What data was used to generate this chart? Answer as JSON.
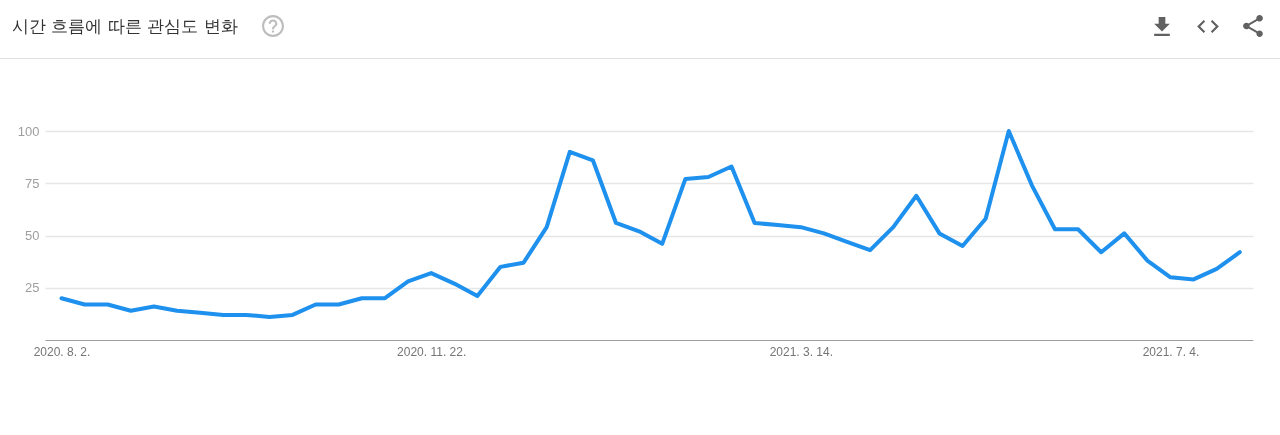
{
  "chart_data": {
    "type": "line",
    "title": "시간 흐름에 따른 관심도 변화",
    "x": [
      "2020-08-02",
      "2020-08-09",
      "2020-08-16",
      "2020-08-23",
      "2020-08-30",
      "2020-09-06",
      "2020-09-13",
      "2020-09-20",
      "2020-09-27",
      "2020-10-04",
      "2020-10-11",
      "2020-10-18",
      "2020-10-25",
      "2020-11-01",
      "2020-11-08",
      "2020-11-15",
      "2020-11-22",
      "2020-11-29",
      "2020-12-06",
      "2020-12-13",
      "2020-12-20",
      "2020-12-27",
      "2021-01-03",
      "2021-01-10",
      "2021-01-17",
      "2021-01-24",
      "2021-01-31",
      "2021-02-07",
      "2021-02-14",
      "2021-02-21",
      "2021-02-28",
      "2021-03-07",
      "2021-03-14",
      "2021-03-21",
      "2021-03-28",
      "2021-04-04",
      "2021-04-11",
      "2021-04-18",
      "2021-04-25",
      "2021-05-02",
      "2021-05-09",
      "2021-05-16",
      "2021-05-23",
      "2021-05-30",
      "2021-06-06",
      "2021-06-13",
      "2021-06-20",
      "2021-06-27",
      "2021-07-04",
      "2021-07-11",
      "2021-07-18",
      "2021-07-25"
    ],
    "series": [
      {
        "color": "#1e90ee",
        "values": [
          20,
          17,
          17,
          14,
          16,
          14,
          13,
          12,
          12,
          11,
          12,
          17,
          17,
          20,
          20,
          28,
          32,
          27,
          21,
          35,
          37,
          54,
          90,
          86,
          56,
          52,
          46,
          77,
          78,
          83,
          56,
          55,
          54,
          51,
          47,
          43,
          54,
          69,
          51,
          45,
          58,
          100,
          74,
          53,
          53,
          42,
          51,
          38,
          30,
          29,
          34,
          42
        ]
      }
    ],
    "xlim": [
      "2020-07-28",
      "2021-07-29"
    ],
    "xticks": [
      {
        "value": "2020-08-02",
        "label": "2020. 8. 2."
      },
      {
        "value": "2020-11-22",
        "label": "2020. 11. 22."
      },
      {
        "value": "2021-03-14",
        "label": "2021. 3. 14."
      },
      {
        "value": "2021-07-04",
        "label": "2021. 7. 4."
      }
    ],
    "ylim": [
      0,
      100
    ],
    "yticks": [
      25,
      50,
      75,
      100
    ],
    "grid": "y",
    "line_style": "solid"
  }
}
